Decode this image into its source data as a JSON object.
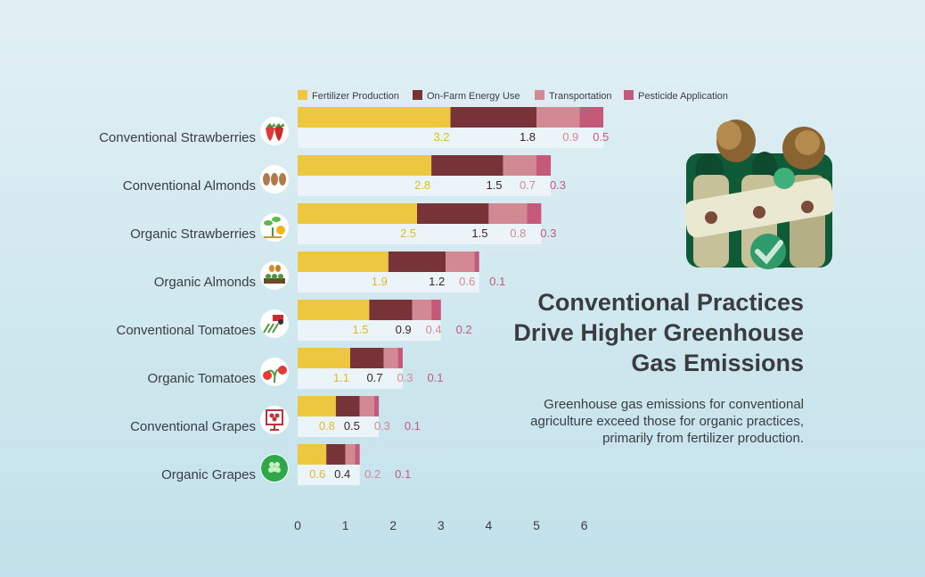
{
  "chart_data": {
    "type": "bar",
    "orientation": "horizontal",
    "stacked": true,
    "title": "Conventional Practices Drive Higher Greenhouse Gas Emissions",
    "subtitle": "Greenhouse gas emissions for conventional agriculture exceed those for organic practices, primarily from fertilizer production.",
    "categories": [
      "Conventional Strawberries",
      "Conventional Almonds",
      "Organic Strawberries",
      "Organic Almonds",
      "Conventional Tomatoes",
      "Organic Tomatoes",
      "Conventional Grapes",
      "Organic Grapes"
    ],
    "category_icons": [
      "strawberry-icon",
      "almond-icon",
      "sprout-check-icon",
      "orchard-icon",
      "tractor-field-icon",
      "tomato-plant-icon",
      "grape-sign-icon",
      "organic-grape-icon"
    ],
    "series": [
      {
        "name": "Fertilizer Production",
        "color": "#ecc73f",
        "label_color": "#e0b830",
        "values": [
          3.2,
          2.8,
          2.5,
          1.9,
          1.5,
          1.1,
          0.8,
          0.6
        ]
      },
      {
        "name": "On-Farm Energy Use",
        "color": "#783338",
        "label_color": "#3d2326",
        "values": [
          1.8,
          1.5,
          1.5,
          1.2,
          0.9,
          0.7,
          0.5,
          0.4
        ]
      },
      {
        "name": "Transportation",
        "color": "#d38993",
        "label_color": "#d38993",
        "values": [
          0.9,
          0.7,
          0.8,
          0.6,
          0.4,
          0.3,
          0.3,
          0.2
        ]
      },
      {
        "name": "Pesticide Application",
        "color": "#c55979",
        "label_color": "#c55979",
        "values": [
          0.5,
          0.3,
          0.3,
          0.1,
          0.2,
          0.1,
          0.1,
          0.1
        ]
      }
    ],
    "x_ticks": [
      0,
      1,
      2,
      3,
      4,
      5,
      6
    ],
    "xlim": [
      0,
      6
    ],
    "xlabel": "",
    "ylabel": "",
    "legend_position": "top",
    "grid": false
  }
}
